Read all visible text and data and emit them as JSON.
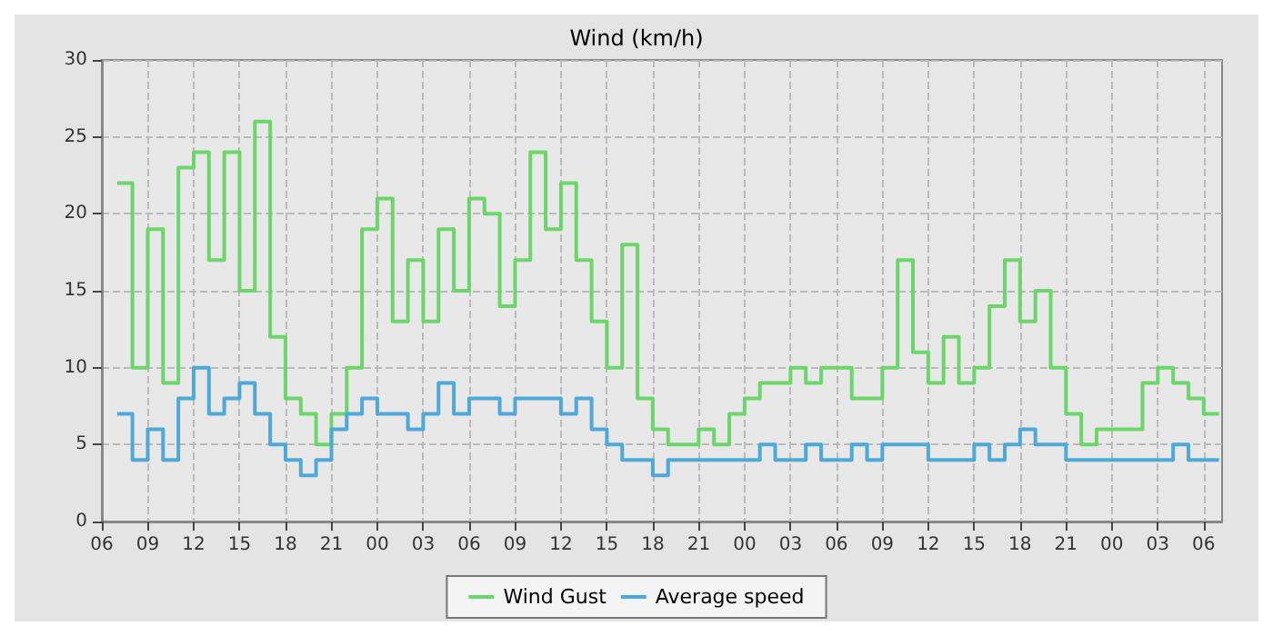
{
  "chart_data": {
    "type": "step",
    "title": "Wind (km/h)",
    "x": [
      7,
      8,
      9,
      10,
      11,
      12,
      13,
      14,
      15,
      16,
      17,
      18,
      19,
      20,
      21,
      22,
      23,
      24,
      25,
      26,
      27,
      28,
      29,
      30,
      31,
      32,
      33,
      34,
      35,
      36,
      37,
      38,
      39,
      40,
      41,
      42,
      43,
      44,
      45,
      46,
      47,
      48,
      49,
      50,
      51,
      52,
      53,
      54,
      55,
      56,
      57,
      58,
      59,
      60,
      61,
      62,
      63,
      64,
      65,
      66,
      67,
      68,
      69,
      70,
      71,
      72,
      73,
      74,
      75,
      76,
      77,
      78,
      79
    ],
    "series": [
      {
        "name": "Wind Gust",
        "color": "#6dd66b",
        "values": [
          22,
          10,
          19,
          9,
          23,
          24,
          17,
          24,
          15,
          26,
          12,
          8,
          7,
          5,
          7,
          10,
          19,
          21,
          13,
          17,
          13,
          19,
          15,
          21,
          20,
          14,
          17,
          24,
          19,
          22,
          17,
          13,
          10,
          18,
          8,
          6,
          5,
          5,
          6,
          5,
          7,
          8,
          9,
          9,
          10,
          9,
          10,
          10,
          8,
          8,
          10,
          17,
          11,
          9,
          12,
          9,
          10,
          14,
          17,
          13,
          15,
          10,
          7,
          5,
          6,
          6,
          6,
          9,
          10,
          9,
          8,
          7,
          7
        ]
      },
      {
        "name": "Average speed",
        "color": "#4ea8d8",
        "values": [
          7,
          4,
          6,
          4,
          8,
          10,
          7,
          8,
          9,
          7,
          5,
          4,
          3,
          4,
          6,
          7,
          8,
          7,
          7,
          6,
          7,
          9,
          7,
          8,
          8,
          7,
          8,
          8,
          8,
          7,
          8,
          6,
          5,
          4,
          4,
          3,
          4,
          4,
          4,
          4,
          4,
          4,
          5,
          4,
          4,
          5,
          4,
          4,
          5,
          4,
          5,
          5,
          5,
          4,
          4,
          4,
          5,
          4,
          5,
          6,
          5,
          5,
          4,
          4,
          4,
          4,
          4,
          4,
          4,
          5,
          4,
          4,
          4
        ]
      }
    ],
    "xlim": [
      6,
      79.2
    ],
    "xticks": [
      {
        "value": 6,
        "label": "06"
      },
      {
        "value": 9,
        "label": "09"
      },
      {
        "value": 12,
        "label": "12"
      },
      {
        "value": 15,
        "label": "15"
      },
      {
        "value": 18,
        "label": "18"
      },
      {
        "value": 21,
        "label": "21"
      },
      {
        "value": 24,
        "label": "00"
      },
      {
        "value": 27,
        "label": "03"
      },
      {
        "value": 30,
        "label": "06"
      },
      {
        "value": 33,
        "label": "09"
      },
      {
        "value": 36,
        "label": "12"
      },
      {
        "value": 39,
        "label": "15"
      },
      {
        "value": 42,
        "label": "18"
      },
      {
        "value": 45,
        "label": "21"
      },
      {
        "value": 48,
        "label": "00"
      },
      {
        "value": 51,
        "label": "03"
      },
      {
        "value": 54,
        "label": "06"
      },
      {
        "value": 57,
        "label": "09"
      },
      {
        "value": 60,
        "label": "12"
      },
      {
        "value": 63,
        "label": "15"
      },
      {
        "value": 66,
        "label": "18"
      },
      {
        "value": 69,
        "label": "21"
      },
      {
        "value": 72,
        "label": "00"
      },
      {
        "value": 75,
        "label": "03"
      },
      {
        "value": 78,
        "label": "06"
      }
    ],
    "ylim": [
      0,
      30
    ],
    "yticks": [
      0,
      5,
      10,
      15,
      20,
      25,
      30
    ],
    "grid": true,
    "legend": "bottom",
    "marker": "none",
    "line_style": "solid"
  }
}
